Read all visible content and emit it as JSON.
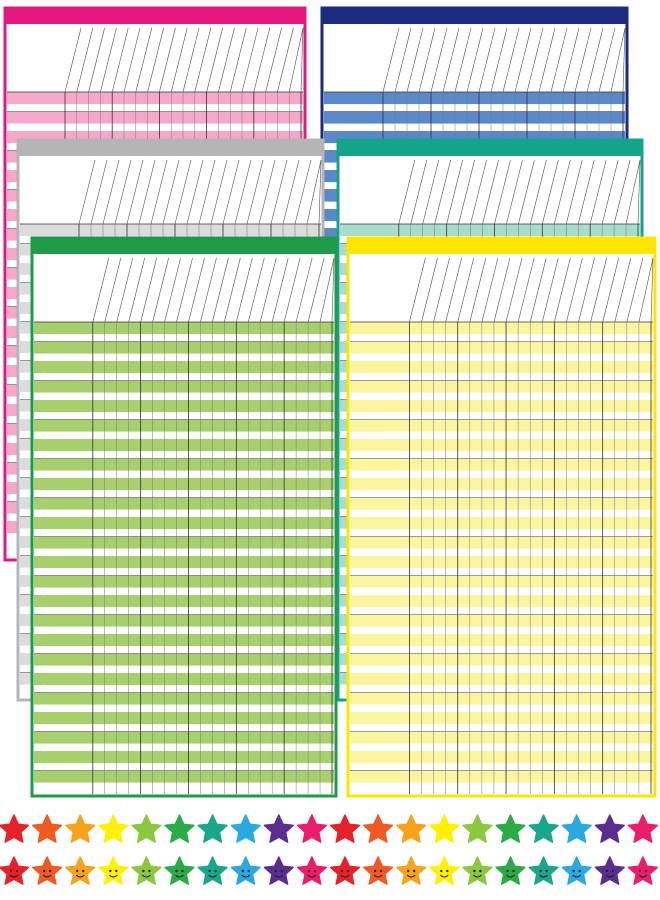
{
  "charts": [
    {
      "color": "#e3187d",
      "stripe": "#f5a8c9"
    },
    {
      "color": "#1c2a80",
      "stripe": "#5b88c8"
    },
    {
      "color": "#b5b5b5",
      "stripe": "#dcdcdc"
    },
    {
      "color": "#14a38b",
      "stripe": "#a8dccf"
    },
    {
      "color": "#1f9a48",
      "stripe": "#a8cf6e"
    },
    {
      "color": "#ffe600",
      "stripe": "#fbf5a0"
    }
  ],
  "stars": {
    "colors": [
      "#e8202a",
      "#f05a22",
      "#f7a21b",
      "#fff200",
      "#8dc63f",
      "#2bab48",
      "#1aa68a",
      "#2aa8e0",
      "#5b2d90",
      "#ec1c6c"
    ]
  }
}
